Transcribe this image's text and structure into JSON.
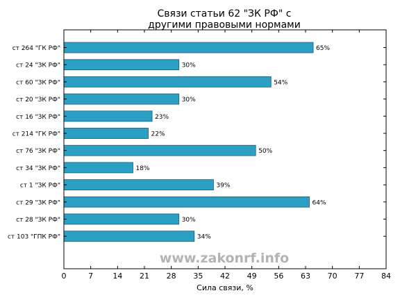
{
  "chart_data": {
    "type": "bar",
    "orientation": "horizontal",
    "title_lines": [
      "Связи статьи 62 \"ЗК РФ\" с",
      "другими правовыми нормами"
    ],
    "xlabel": "Сила связи, %",
    "ylabel": "",
    "xlim": [
      0,
      84
    ],
    "xticks": [
      0,
      7,
      14,
      21,
      28,
      35,
      42,
      49,
      56,
      63,
      70,
      77,
      84
    ],
    "grid": false,
    "categories": [
      "ст 264 \"ГК РФ\"",
      "ст 24 \"ЗК РФ\"",
      "ст 60 \"ЗК РФ\"",
      "ст 20 \"ЗК РФ\"",
      "ст 16 \"ЗК РФ\"",
      "ст 214 \"ГК РФ\"",
      "ст 76 \"ЗК РФ\"",
      "ст 34 \"ЗК РФ\"",
      "ст 1 \"ЗК РФ\"",
      "ст 29 \"ЗК РФ\"",
      "ст 28 \"ЗК РФ\"",
      "ст 103 \"ГПК РФ\""
    ],
    "values": [
      65,
      30,
      54,
      30,
      23,
      22,
      50,
      18,
      39,
      64,
      30,
      34
    ],
    "data_labels": [
      "65%",
      "30%",
      "54%",
      "30%",
      "23%",
      "22%",
      "50%",
      "18%",
      "39%",
      "64%",
      "30%",
      "34%"
    ],
    "bar_color": "#2b9fc4",
    "bar_edge_color": "#1a5f78"
  },
  "watermark": "www.zakonrf.info"
}
